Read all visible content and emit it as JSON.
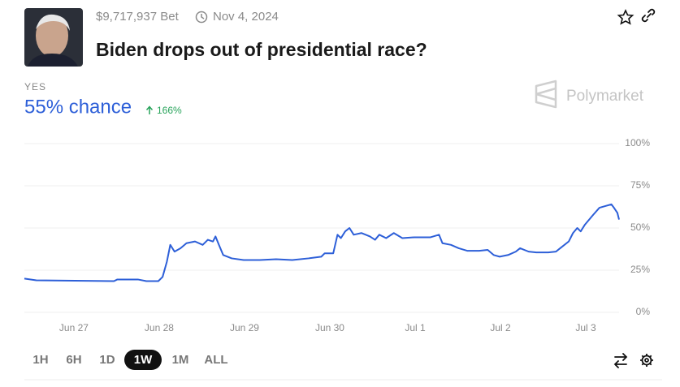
{
  "header": {
    "volume": "$9,717,937 Bet",
    "end_date": "Nov 4, 2024",
    "title": "Biden drops out of presidential race?"
  },
  "outcome": {
    "label": "YES",
    "chance": "55% chance",
    "change": "166%"
  },
  "brand": "Polymarket",
  "ranges": [
    "1H",
    "6H",
    "1D",
    "1W",
    "1M",
    "ALL"
  ],
  "selected_range": "1W",
  "chart_data": {
    "type": "line",
    "x": [
      -0.58,
      -0.44,
      0.47,
      0.51,
      0.75,
      0.85,
      0.99,
      1.04,
      1.09,
      1.13,
      1.18,
      1.25,
      1.32,
      1.42,
      1.51,
      1.57,
      1.63,
      1.66,
      1.7,
      1.75,
      1.85,
      1.99,
      2.18,
      2.37,
      2.56,
      2.75,
      2.9,
      2.94,
      3.04,
      3.09,
      3.13,
      3.18,
      3.23,
      3.28,
      3.37,
      3.47,
      3.53,
      3.58,
      3.66,
      3.75,
      3.85,
      3.99,
      4.18,
      4.28,
      4.32,
      4.42,
      4.51,
      4.61,
      4.75,
      4.85,
      4.92,
      4.99,
      5.09,
      5.18,
      5.23,
      5.33,
      5.42,
      5.56,
      5.65,
      5.7,
      5.8,
      5.85,
      5.9,
      5.94,
      5.99,
      6.09,
      6.16,
      6.23,
      6.3,
      6.33,
      6.37,
      6.39
    ],
    "series": [
      {
        "name": "YES",
        "color": "#2d5fd8",
        "values": [
          20,
          19,
          18.5,
          19.5,
          19.5,
          18.5,
          18.5,
          21,
          30,
          40,
          36,
          38,
          41,
          42,
          40,
          43,
          42,
          45,
          40,
          34,
          32,
          31,
          31,
          31.5,
          31,
          32,
          33,
          35,
          35,
          46,
          44,
          48,
          50,
          46,
          47,
          45,
          43,
          46,
          44,
          47,
          44,
          44.5,
          44.5,
          46,
          41,
          40,
          38,
          36.5,
          36.5,
          37,
          34,
          33,
          34,
          36,
          38,
          36,
          35.5,
          35.5,
          36,
          38,
          42,
          47,
          50,
          48,
          52,
          58,
          62,
          63,
          64,
          62,
          59,
          55
        ]
      }
    ],
    "xlim": [
      -0.58,
      6.39
    ],
    "xticks": [
      {
        "value": 0,
        "label": "Jun 27"
      },
      {
        "value": 1,
        "label": "Jun 28"
      },
      {
        "value": 2,
        "label": "Jun 29"
      },
      {
        "value": 3,
        "label": "Jun 30"
      },
      {
        "value": 4,
        "label": "Jul 1"
      },
      {
        "value": 5,
        "label": "Jul 2"
      },
      {
        "value": 6,
        "label": "Jul 3"
      }
    ],
    "ylim": [
      0,
      100
    ],
    "yticks": [
      {
        "value": 0,
        "label": "0%"
      },
      {
        "value": 25,
        "label": "25%"
      },
      {
        "value": 50,
        "label": "50%"
      },
      {
        "value": 75,
        "label": "75%"
      },
      {
        "value": 100,
        "label": "100%"
      }
    ],
    "grid": true
  }
}
